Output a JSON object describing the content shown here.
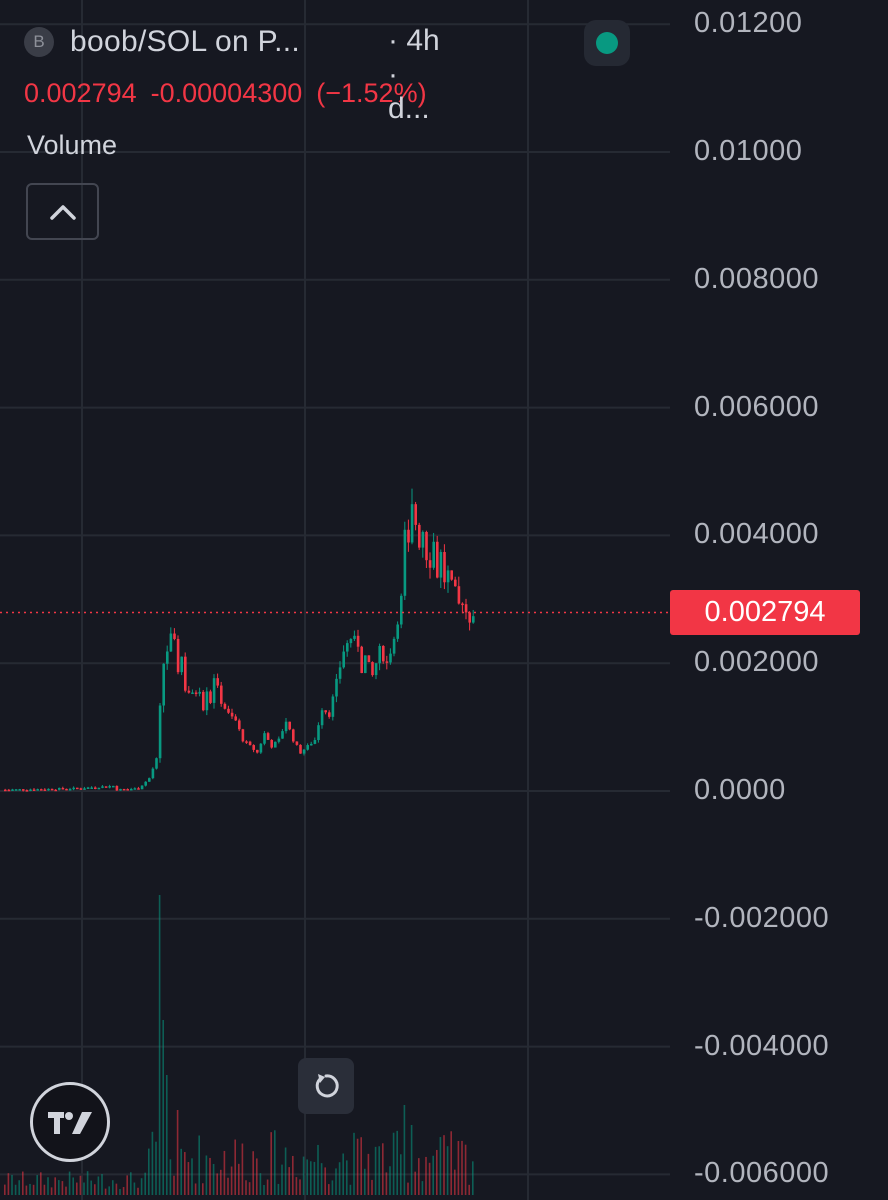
{
  "header": {
    "symbol_initial": "B",
    "title": "boob/SOL on P...",
    "interval": "· 4h · d...",
    "last": "0.002794",
    "change": "-0.00004300",
    "change_pct": "(−1.52%)",
    "volume_label": "Volume"
  },
  "price_axis": {
    "labels": [
      "0.01200",
      "0.01000",
      "0.008000",
      "0.006000",
      "0.004000",
      "0.002000",
      "0.0000",
      "-0.002000",
      "-0.004000",
      "-0.006000"
    ],
    "last_price_badge": "0.002794"
  },
  "colors": {
    "up": "#089981",
    "down": "#f23645",
    "bg": "#161821",
    "grid": "#262a33"
  },
  "icons": {
    "collapse": "chevron-up-icon",
    "reset": "reset-icon",
    "logo": "tradingview-logo-icon",
    "live": "live-dot-icon"
  },
  "chart_data": {
    "type": "candlestick",
    "title": "boob/SOL",
    "xlabel": "",
    "ylabel": "",
    "ylim": [
      -0.006,
      0.012
    ],
    "last_price": 0.002794,
    "close_path": [
      [
        0,
        2e-05
      ],
      [
        12,
        3e-05
      ],
      [
        20,
        4e-05
      ],
      [
        25,
        6e-05
      ],
      [
        30,
        8e-05
      ],
      [
        31,
        2e-05
      ],
      [
        34,
        3e-05
      ],
      [
        37,
        4e-05
      ],
      [
        40,
        0.0002
      ],
      [
        42,
        0.0005
      ],
      [
        43,
        0.0013
      ],
      [
        44,
        0.002
      ],
      [
        45,
        0.0022
      ],
      [
        46,
        0.0024
      ],
      [
        47,
        0.0023
      ],
      [
        48,
        0.0019
      ],
      [
        49,
        0.0021
      ],
      [
        50,
        0.0016
      ],
      [
        52,
        0.0015
      ],
      [
        54,
        0.0016
      ],
      [
        55,
        0.0013
      ],
      [
        56,
        0.0016
      ],
      [
        57,
        0.0014
      ],
      [
        58,
        0.0018
      ],
      [
        59,
        0.0016
      ],
      [
        60,
        0.0014
      ],
      [
        62,
        0.0012
      ],
      [
        64,
        0.0011
      ],
      [
        66,
        0.0008
      ],
      [
        68,
        0.0007
      ],
      [
        70,
        0.0006
      ],
      [
        72,
        0.0009
      ],
      [
        74,
        0.0007
      ],
      [
        76,
        0.0008
      ],
      [
        78,
        0.0011
      ],
      [
        80,
        0.0008
      ],
      [
        82,
        0.0006
      ],
      [
        84,
        0.0007
      ],
      [
        86,
        0.0008
      ],
      [
        88,
        0.0013
      ],
      [
        90,
        0.0012
      ],
      [
        92,
        0.0017
      ],
      [
        94,
        0.0022
      ],
      [
        96,
        0.0024
      ],
      [
        98,
        0.0023
      ],
      [
        99,
        0.0019
      ],
      [
        100,
        0.0021
      ],
      [
        102,
        0.0018
      ],
      [
        104,
        0.0022
      ],
      [
        106,
        0.002
      ],
      [
        108,
        0.0024
      ],
      [
        110,
        0.003
      ],
      [
        111,
        0.004
      ],
      [
        112,
        0.0038
      ],
      [
        113,
        0.0044
      ],
      [
        114,
        0.0042
      ],
      [
        115,
        0.0039
      ],
      [
        116,
        0.0041
      ],
      [
        117,
        0.0037
      ],
      [
        118,
        0.0036
      ],
      [
        119,
        0.0039
      ],
      [
        120,
        0.0034
      ],
      [
        121,
        0.0037
      ],
      [
        122,
        0.0033
      ],
      [
        123,
        0.0034
      ],
      [
        124,
        0.0032
      ],
      [
        125,
        0.0031
      ],
      [
        126,
        0.0029
      ],
      [
        127,
        0.003
      ],
      [
        128,
        0.0028
      ],
      [
        129,
        0.0027
      ],
      [
        130,
        0.002794
      ]
    ],
    "volume": {
      "max": "spike near candle 43",
      "units": "relative"
    }
  }
}
